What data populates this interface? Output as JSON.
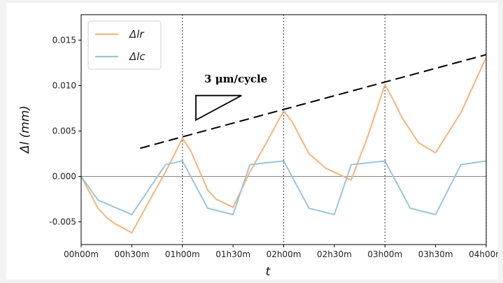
{
  "chart_data": {
    "type": "line",
    "title": "",
    "xlabel": "t",
    "ylabel": "Δl (mm)",
    "xlim": [
      0,
      240
    ],
    "ylim": [
      -0.0075,
      0.0178
    ],
    "x_tick_values": [
      0,
      30,
      60,
      90,
      120,
      150,
      180,
      210,
      240
    ],
    "x_tick_labels": [
      "00h00m",
      "00h30m",
      "01h00m",
      "01h30m",
      "02h00m",
      "02h30m",
      "03h00m",
      "03h30m",
      "04h00m"
    ],
    "y_ticks": [
      -0.005,
      0.0,
      0.005,
      0.01,
      0.015
    ],
    "y_tick_labels": [
      "-0.005",
      "0.000",
      "0.005",
      "0.010",
      "0.015"
    ],
    "grid": false,
    "legend_position": "top-left",
    "reference_hline": 0.0,
    "vlines": [
      60,
      120,
      180,
      240
    ],
    "series": [
      {
        "name": "Δlr",
        "color": "#f5b47c",
        "x": [
          0,
          10,
          15,
          20,
          30,
          38,
          50,
          60,
          65,
          75,
          80,
          90,
          100,
          110,
          120,
          125,
          135,
          145,
          160,
          170,
          180,
          185,
          190,
          200,
          210,
          225,
          240
        ],
        "y": [
          0.0,
          -0.0035,
          -0.0045,
          -0.0052,
          -0.0062,
          -0.0035,
          0.0005,
          0.0042,
          0.0028,
          -0.0015,
          -0.0025,
          -0.0034,
          0.0005,
          0.0038,
          0.0072,
          0.006,
          0.0025,
          0.0009,
          -0.0004,
          0.0045,
          0.0101,
          0.0084,
          0.0065,
          0.0037,
          0.0026,
          0.007,
          0.0131
        ]
      },
      {
        "name": "Δlc",
        "color": "#9cc4da",
        "x": [
          0,
          10,
          30,
          50,
          60,
          75,
          90,
          100,
          120,
          135,
          150,
          160,
          180,
          195,
          210,
          225,
          240
        ],
        "y": [
          0.0,
          -0.0026,
          -0.0042,
          0.0013,
          0.0017,
          -0.0035,
          -0.0042,
          0.0013,
          0.0017,
          -0.0035,
          -0.0042,
          0.0013,
          0.0017,
          -0.0035,
          -0.0042,
          0.0013,
          0.0017
        ]
      }
    ],
    "trend_line": {
      "x": [
        35,
        240
      ],
      "y": [
        0.0031,
        0.0134
      ]
    },
    "annotation": {
      "text": "3 μm/cycle",
      "triangle": {
        "x": [
          68,
          68,
          95
        ],
        "y": [
          0.0062,
          0.0089,
          0.0089
        ]
      }
    }
  }
}
